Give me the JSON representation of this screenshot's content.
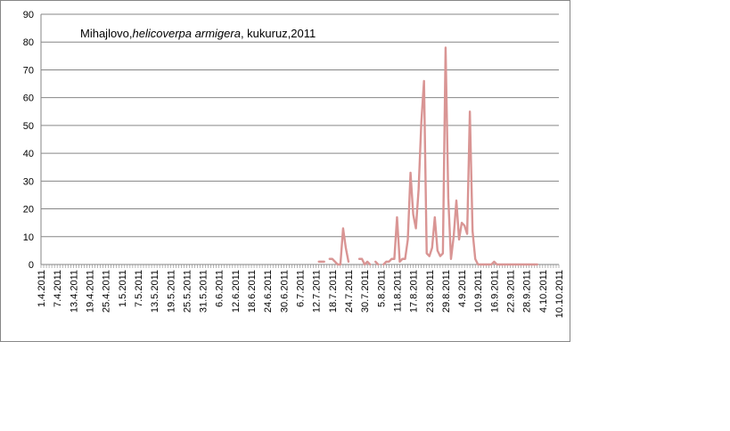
{
  "chart_data": {
    "type": "line",
    "title_parts": [
      {
        "text": "Mihajlovo,",
        "italic": false
      },
      {
        "text": "helicoverpa armigera",
        "italic": true
      },
      {
        "text": ", kukuruz,2011",
        "italic": false
      }
    ],
    "xlabel": "",
    "ylabel": "",
    "ylim": [
      0,
      90
    ],
    "yticks": [
      0,
      10,
      20,
      30,
      40,
      50,
      60,
      70,
      80,
      90
    ],
    "grid": true,
    "legend": "none",
    "x_start": "1.4.2011",
    "x_end": "10.10.2011",
    "xtick_labels": [
      "1.4.2011",
      "7.4.2011",
      "13.4.2011",
      "19.4.2011",
      "25.4.2011",
      "1.5.2011",
      "7.5.2011",
      "13.5.2011",
      "19.5.2011",
      "25.5.2011",
      "31.5.2011",
      "6.6.2011",
      "12.6.2011",
      "18.6.2011",
      "24.6.2011",
      "30.6.2011",
      "6.7.2011",
      "12.7.2011",
      "18.7.2011",
      "24.7.2011",
      "30.7.2011",
      "5.8.2011",
      "11.8.2011",
      "17.8.2011",
      "23.8.2011",
      "29.8.2011",
      "4.9.2011",
      "10.9.2011",
      "16.9.2011",
      "22.9.2011",
      "28.9.2011",
      "4.10.2011",
      "10.10.2011"
    ],
    "line_color": "#d99594",
    "series": [
      {
        "segments": [
          [
            [
              "13.7.2011",
              1
            ],
            [
              "14.7.2011",
              1
            ],
            [
              "15.7.2011",
              1
            ]
          ],
          [
            [
              "17.7.2011",
              2
            ],
            [
              "18.7.2011",
              2
            ],
            [
              "19.7.2011",
              1
            ],
            [
              "20.7.2011",
              0
            ],
            [
              "21.7.2011",
              0
            ],
            [
              "22.7.2011",
              13
            ],
            [
              "23.7.2011",
              6
            ],
            [
              "24.7.2011",
              1
            ]
          ],
          [
            [
              "28.7.2011",
              2
            ],
            [
              "29.7.2011",
              2
            ],
            [
              "30.7.2011",
              0
            ],
            [
              "31.7.2011",
              1
            ],
            [
              "1.8.2011",
              0
            ]
          ],
          [
            [
              "3.8.2011",
              1
            ],
            [
              "4.8.2011",
              0
            ]
          ],
          [
            [
              "6.8.2011",
              0
            ],
            [
              "7.8.2011",
              1
            ],
            [
              "8.8.2011",
              1
            ],
            [
              "9.8.2011",
              2
            ],
            [
              "10.8.2011",
              2
            ],
            [
              "11.8.2011",
              17
            ],
            [
              "12.8.2011",
              1
            ],
            [
              "13.8.2011",
              2
            ],
            [
              "14.8.2011",
              2
            ],
            [
              "15.8.2011",
              9
            ],
            [
              "16.8.2011",
              33
            ],
            [
              "17.8.2011",
              18
            ],
            [
              "18.8.2011",
              13
            ],
            [
              "19.8.2011",
              27
            ],
            [
              "20.8.2011",
              51
            ],
            [
              "21.8.2011",
              66
            ],
            [
              "22.8.2011",
              4
            ],
            [
              "23.8.2011",
              3
            ],
            [
              "24.8.2011",
              6
            ],
            [
              "25.8.2011",
              17
            ],
            [
              "26.8.2011",
              5
            ],
            [
              "27.8.2011",
              3
            ],
            [
              "28.8.2011",
              4
            ],
            [
              "29.8.2011",
              78
            ],
            [
              "30.8.2011",
              24
            ],
            [
              "31.8.2011",
              2
            ],
            [
              "1.9.2011",
              10
            ],
            [
              "2.9.2011",
              23
            ],
            [
              "3.9.2011",
              9
            ],
            [
              "4.9.2011",
              15
            ],
            [
              "5.9.2011",
              14
            ],
            [
              "6.9.2011",
              11
            ],
            [
              "7.9.2011",
              55
            ],
            [
              "8.9.2011",
              12
            ],
            [
              "9.9.2011",
              2
            ],
            [
              "10.9.2011",
              0
            ],
            [
              "11.9.2011",
              0
            ],
            [
              "12.9.2011",
              0
            ],
            [
              "13.9.2011",
              0
            ],
            [
              "14.9.2011",
              0
            ],
            [
              "15.9.2011",
              0
            ],
            [
              "16.9.2011",
              1
            ],
            [
              "17.9.2011",
              0
            ],
            [
              "18.9.2011",
              0
            ],
            [
              "19.9.2011",
              0
            ],
            [
              "20.9.2011",
              0
            ],
            [
              "21.9.2011",
              0
            ],
            [
              "22.9.2011",
              0
            ],
            [
              "23.9.2011",
              0
            ],
            [
              "24.9.2011",
              0
            ],
            [
              "25.9.2011",
              0
            ],
            [
              "26.9.2011",
              0
            ],
            [
              "27.9.2011",
              0
            ],
            [
              "28.9.2011",
              0
            ],
            [
              "29.9.2011",
              0
            ],
            [
              "30.9.2011",
              0
            ],
            [
              "1.10.2011",
              0
            ],
            [
              "2.10.2011",
              0
            ]
          ]
        ]
      }
    ]
  }
}
